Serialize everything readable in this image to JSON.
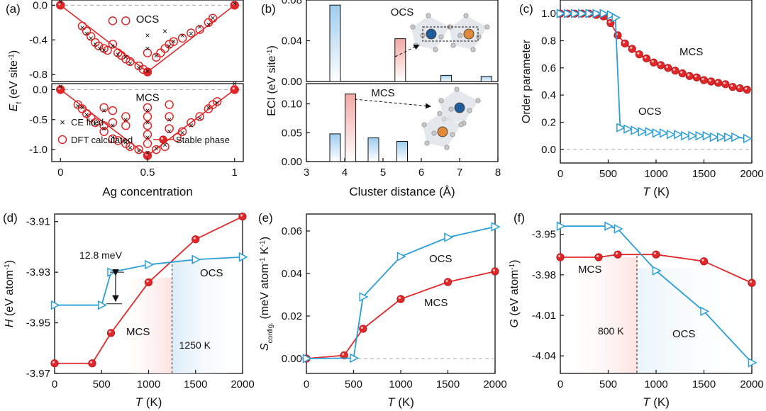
{
  "colors": {
    "mcs": "#e0282a",
    "ocs": "#2a9ed8",
    "ce": "#2a9ed8",
    "dft": "#e0282a"
  },
  "panels": {
    "a": "(a)",
    "b": "(b)",
    "c": "(c)",
    "d": "(d)",
    "e": "(e)",
    "f": "(f)"
  },
  "chart_data": [
    {
      "id": "a",
      "type": "scatter",
      "xlabel": "Ag concentration",
      "ylabel_parts": [
        "E",
        "f",
        " (eV site",
        "-1",
        ")"
      ],
      "xlim": [
        -0.05,
        1.05
      ],
      "xticks": [
        "0",
        "0.5",
        "1"
      ],
      "top": {
        "label": "OCS",
        "ylim": [
          -0.88,
          0.06
        ],
        "yticks": [
          "0.0",
          "-0.4",
          "-0.8"
        ],
        "ytick_values": [
          0.0,
          -0.4,
          -0.8
        ],
        "stable": {
          "x": [
            0,
            0.5,
            1
          ],
          "y": [
            0,
            -0.77,
            0
          ]
        },
        "dft": {
          "x": [
            0,
            0.125,
            0.15,
            0.175,
            0.2,
            0.22,
            0.25,
            0.27,
            0.3,
            0.33,
            0.35,
            0.375,
            0.4,
            0.45,
            0.475,
            0.5,
            0.3,
            0.375,
            0.5,
            0.55,
            0.575,
            0.6,
            0.625,
            0.65,
            0.7,
            0.75,
            0.8,
            0.85,
            0.875,
            1.0
          ],
          "y": [
            0,
            -0.24,
            -0.3,
            -0.36,
            -0.43,
            -0.47,
            -0.5,
            -0.52,
            -0.45,
            -0.55,
            -0.58,
            -0.62,
            -0.65,
            -0.7,
            -0.74,
            -0.77,
            -0.18,
            -0.18,
            -0.55,
            -0.6,
            -0.55,
            -0.5,
            -0.45,
            -0.42,
            -0.38,
            -0.32,
            -0.28,
            -0.2,
            -0.15,
            0
          ]
        },
        "ce": {
          "x": [
            0,
            0.125,
            0.15,
            0.175,
            0.2,
            0.225,
            0.25,
            0.3,
            0.33,
            0.375,
            0.4,
            0.45,
            0.5,
            0.5,
            0.5,
            0.55,
            0.6,
            0.625,
            0.65,
            0.7,
            0.75,
            0.8,
            0.85,
            0.875,
            1.0
          ],
          "y": [
            0.04,
            -0.26,
            -0.33,
            -0.38,
            -0.45,
            -0.5,
            -0.52,
            -0.47,
            -0.57,
            -0.6,
            -0.67,
            -0.72,
            -0.76,
            -0.35,
            -0.5,
            -0.58,
            -0.3,
            -0.47,
            -0.42,
            -0.35,
            -0.33,
            -0.25,
            -0.22,
            -0.15,
            0.02
          ]
        }
      },
      "bottom": {
        "label": "MCS",
        "ylim": [
          -1.2,
          0.1
        ],
        "yticks": [
          "0.0",
          "-0.5",
          "-1.0"
        ],
        "ytick_values": [
          0.0,
          -0.5,
          -1.0
        ],
        "stable": {
          "x": [
            0,
            0.5,
            1
          ],
          "y": [
            0,
            -1.1,
            0
          ]
        },
        "dft": {
          "x": [
            0,
            0.1,
            0.125,
            0.15,
            0.175,
            0.2,
            0.25,
            0.25,
            0.25,
            0.3,
            0.3,
            0.3,
            0.33,
            0.375,
            0.375,
            0.375,
            0.4,
            0.45,
            0.5,
            0.5,
            0.5,
            0.5,
            0.5,
            0.5,
            0.55,
            0.6,
            0.625,
            0.625,
            0.625,
            0.67,
            0.7,
            0.75,
            0.8,
            0.85,
            0.875,
            0.9,
            1.0
          ],
          "y": [
            0,
            -0.25,
            -0.32,
            -0.4,
            -0.47,
            -0.55,
            -0.3,
            -0.6,
            -0.7,
            -0.35,
            -0.55,
            -0.82,
            -0.85,
            -0.45,
            -0.6,
            -0.9,
            -0.95,
            -1.0,
            -0.3,
            -0.45,
            -0.6,
            -0.75,
            -0.9,
            -1.1,
            -1.0,
            -0.95,
            -0.25,
            -0.45,
            -0.65,
            -0.8,
            -0.7,
            -0.55,
            -0.45,
            -0.32,
            -0.25,
            -0.2,
            0
          ]
        },
        "ce": {
          "x": [
            0,
            0.1,
            0.125,
            0.15,
            0.2,
            0.25,
            0.25,
            0.3,
            0.3,
            0.375,
            0.375,
            0.4,
            0.45,
            0.5,
            0.5,
            0.5,
            0.5,
            0.55,
            0.6,
            0.625,
            0.625,
            0.7,
            0.75,
            0.8,
            0.85,
            0.9,
            1.0
          ],
          "y": [
            0.05,
            -0.27,
            -0.3,
            -0.42,
            -0.57,
            -0.35,
            -0.65,
            -0.6,
            -0.8,
            -0.5,
            -0.88,
            -0.97,
            -1.02,
            -0.35,
            -0.55,
            -0.8,
            -1.05,
            -0.98,
            -0.92,
            -0.5,
            -0.7,
            -0.72,
            -0.6,
            -0.48,
            -0.3,
            -0.22,
            0.1
          ]
        }
      },
      "legend": {
        "ce": "CE fited",
        "dft": "DFT calculated",
        "stable": "Stable phase"
      }
    },
    {
      "id": "b",
      "type": "bar",
      "xlabel": "Cluster distance (Å)",
      "ylabel_parts": [
        "ECI (eV site",
        "-1",
        ")"
      ],
      "xlim": [
        3,
        8
      ],
      "xticks": [
        "3",
        "4",
        "5",
        "6",
        "7",
        "8"
      ],
      "top": {
        "label": "OCS",
        "ylim": [
          0,
          0.08
        ],
        "yticks": [
          "0.00",
          "0.04",
          "0.08"
        ],
        "ytick_values": [
          0,
          0.04,
          0.08
        ],
        "x": [
          3.75,
          5.45,
          6.65,
          7.7
        ],
        "values": [
          0.075,
          0.042,
          0.006,
          0.005
        ],
        "colors": [
          "ocs",
          "mcs",
          "ocs",
          "ocs"
        ]
      },
      "bottom": {
        "label": "MCS",
        "ylim": [
          0,
          0.135
        ],
        "yticks": [
          "0.00",
          "0.05",
          "0.10"
        ],
        "ytick_values": [
          0,
          0.05,
          0.1
        ],
        "x": [
          3.75,
          4.15,
          4.75,
          5.5
        ],
        "values": [
          0.048,
          0.117,
          0.041,
          0.035
        ],
        "colors": [
          "ocs",
          "mcs",
          "ocs",
          "ocs"
        ]
      }
    },
    {
      "id": "c",
      "type": "line",
      "xlabel_parts": [
        "T",
        " (K)"
      ],
      "ylabel": "Order parameter",
      "xlim": [
        0,
        2000
      ],
      "ylim": [
        -0.1,
        1.1
      ],
      "xticks": [
        "0",
        "500",
        "1000",
        "1500",
        "2000"
      ],
      "xtick_values": [
        0,
        500,
        1000,
        1500,
        2000
      ],
      "yticks": [
        "0.0",
        "0.2",
        "0.4",
        "0.6",
        "0.8",
        "1.0"
      ],
      "ytick_values": [
        0,
        0.2,
        0.4,
        0.6,
        0.8,
        1.0
      ],
      "series": [
        {
          "name": "MCS",
          "color": "mcs",
          "marker": "circle",
          "x": [
            0,
            75,
            150,
            225,
            300,
            375,
            450,
            525,
            600,
            675,
            750,
            825,
            900,
            975,
            1050,
            1125,
            1200,
            1275,
            1350,
            1425,
            1500,
            1575,
            1650,
            1725,
            1800,
            1875,
            1950
          ],
          "y": [
            1.0,
            1.0,
            1.0,
            1.0,
            1.0,
            0.99,
            0.98,
            0.93,
            0.84,
            0.78,
            0.74,
            0.7,
            0.67,
            0.64,
            0.62,
            0.6,
            0.58,
            0.56,
            0.54,
            0.53,
            0.51,
            0.5,
            0.49,
            0.48,
            0.46,
            0.45,
            0.44
          ]
        },
        {
          "name": "OCS",
          "color": "ocs",
          "marker": "triangle",
          "x": [
            0,
            75,
            150,
            225,
            300,
            375,
            450,
            525,
            575,
            625,
            700,
            775,
            850,
            925,
            1000,
            1075,
            1150,
            1225,
            1300,
            1375,
            1450,
            1525,
            1600,
            1675,
            1750,
            1825,
            1950
          ],
          "y": [
            1.0,
            1.0,
            1.0,
            1.0,
            1.0,
            1.0,
            1.0,
            0.99,
            0.97,
            0.16,
            0.15,
            0.14,
            0.13,
            0.13,
            0.12,
            0.12,
            0.11,
            0.11,
            0.1,
            0.1,
            0.1,
            0.1,
            0.09,
            0.09,
            0.09,
            0.09,
            0.08
          ]
        }
      ]
    },
    {
      "id": "d",
      "type": "line",
      "xlabel_parts": [
        "T",
        " (K)"
      ],
      "ylabel_parts": [
        "H",
        " (eV atom",
        "-1",
        ")"
      ],
      "xlim": [
        0,
        2000
      ],
      "ylim": [
        -3.97,
        -3.907
      ],
      "xticks": [
        "0",
        "500",
        "1000",
        "1500",
        "2000"
      ],
      "xtick_values": [
        0,
        500,
        1000,
        1500,
        2000
      ],
      "yticks": [
        "-3.91",
        "-3.93",
        "-3.95",
        "-3.97"
      ],
      "ytick_values": [
        -3.91,
        -3.93,
        -3.95,
        -3.97
      ],
      "series": [
        {
          "name": "MCS",
          "color": "mcs",
          "marker": "circle",
          "x": [
            0,
            400,
            600,
            1000,
            1500,
            2000
          ],
          "y": [
            -3.966,
            -3.966,
            -3.954,
            -3.934,
            -3.917,
            -3.908
          ]
        },
        {
          "name": "OCS",
          "color": "ocs",
          "marker": "triangle",
          "x": [
            0,
            500,
            600,
            1000,
            1500,
            2000
          ],
          "y": [
            -3.943,
            -3.943,
            -3.93,
            -3.927,
            -3.925,
            -3.924
          ]
        }
      ],
      "annotations": {
        "gap": "12.8 meV",
        "vline": "1250 K",
        "vline_x": 1250
      }
    },
    {
      "id": "e",
      "type": "line",
      "xlabel_parts": [
        "T",
        " (K)"
      ],
      "ylabel_parts": [
        "S",
        "config.",
        " (meV atom",
        "-1",
        " K",
        "-1",
        ")"
      ],
      "xlim": [
        0,
        2000
      ],
      "ylim": [
        -0.007,
        0.068
      ],
      "xticks": [
        "0",
        "500",
        "1000",
        "1500",
        "2000"
      ],
      "xtick_values": [
        0,
        500,
        1000,
        1500,
        2000
      ],
      "yticks": [
        "0.00",
        "0.02",
        "0.04",
        "0.06"
      ],
      "ytick_values": [
        0,
        0.02,
        0.04,
        0.06
      ],
      "series": [
        {
          "name": "MCS",
          "color": "mcs",
          "marker": "circle",
          "x": [
            0,
            400,
            600,
            1000,
            1500,
            2000
          ],
          "y": [
            0.0,
            0.0015,
            0.014,
            0.028,
            0.036,
            0.041
          ]
        },
        {
          "name": "OCS",
          "color": "ocs",
          "marker": "triangle",
          "x": [
            0,
            500,
            600,
            1000,
            1500,
            2000
          ],
          "y": [
            0.0,
            0.0002,
            0.029,
            0.048,
            0.057,
            0.062
          ]
        }
      ]
    },
    {
      "id": "f",
      "type": "line",
      "xlabel_parts": [
        "T",
        " (K)"
      ],
      "ylabel_parts": [
        "G",
        " (eV atom",
        "-1",
        ")"
      ],
      "xlim": [
        0,
        2000
      ],
      "ylim": [
        -4.053,
        -3.935
      ],
      "xticks": [
        "0",
        "500",
        "1000",
        "1500",
        "2000"
      ],
      "xtick_values": [
        0,
        500,
        1000,
        1500,
        2000
      ],
      "yticks": [
        "-3.95",
        "-3.98",
        "-4.01",
        "-4.04"
      ],
      "ytick_values": [
        -3.95,
        -3.98,
        -4.01,
        -4.04
      ],
      "series": [
        {
          "name": "MCS",
          "color": "mcs",
          "marker": "circle",
          "x": [
            0,
            400,
            600,
            1000,
            1500,
            2000
          ],
          "y": [
            -3.967,
            -3.967,
            -3.965,
            -3.965,
            -3.97,
            -3.986
          ]
        },
        {
          "name": "OCS",
          "color": "ocs",
          "marker": "triangle",
          "x": [
            0,
            500,
            600,
            1000,
            1500,
            2000
          ],
          "y": [
            -3.944,
            -3.944,
            -3.946,
            -3.977,
            -4.007,
            -4.045
          ]
        }
      ],
      "annotations": {
        "vline": "800 K",
        "vline_x": 800
      }
    }
  ]
}
